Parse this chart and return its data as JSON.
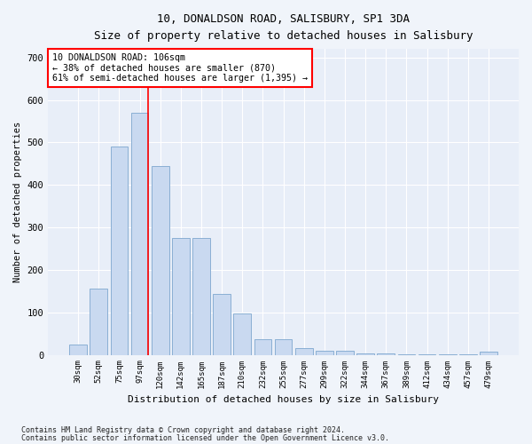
{
  "title1": "10, DONALDSON ROAD, SALISBURY, SP1 3DA",
  "title2": "Size of property relative to detached houses in Salisbury",
  "xlabel": "Distribution of detached houses by size in Salisbury",
  "ylabel": "Number of detached properties",
  "footnote1": "Contains HM Land Registry data © Crown copyright and database right 2024.",
  "footnote2": "Contains public sector information licensed under the Open Government Licence v3.0.",
  "bar_labels": [
    "30sqm",
    "52sqm",
    "75sqm",
    "97sqm",
    "120sqm",
    "142sqm",
    "165sqm",
    "187sqm",
    "210sqm",
    "232sqm",
    "255sqm",
    "277sqm",
    "299sqm",
    "322sqm",
    "344sqm",
    "367sqm",
    "389sqm",
    "412sqm",
    "434sqm",
    "457sqm",
    "479sqm"
  ],
  "bar_values": [
    25,
    155,
    490,
    570,
    445,
    275,
    275,
    143,
    97,
    36,
    36,
    15,
    10,
    10,
    3,
    3,
    2,
    2,
    1,
    1,
    8
  ],
  "bar_color": "#c9d9f0",
  "bar_edge_color": "#8aafd4",
  "bg_color": "#e8eef8",
  "grid_color": "#ffffff",
  "vline_color": "red",
  "annotation_text": "10 DONALDSON ROAD: 106sqm\n← 38% of detached houses are smaller (870)\n61% of semi-detached houses are larger (1,395) →",
  "annotation_box_color": "#ffffff",
  "annotation_box_edge": "red",
  "ylim": [
    0,
    720
  ],
  "yticks": [
    0,
    100,
    200,
    300,
    400,
    500,
    600,
    700
  ],
  "fig_facecolor": "#f0f4fa"
}
